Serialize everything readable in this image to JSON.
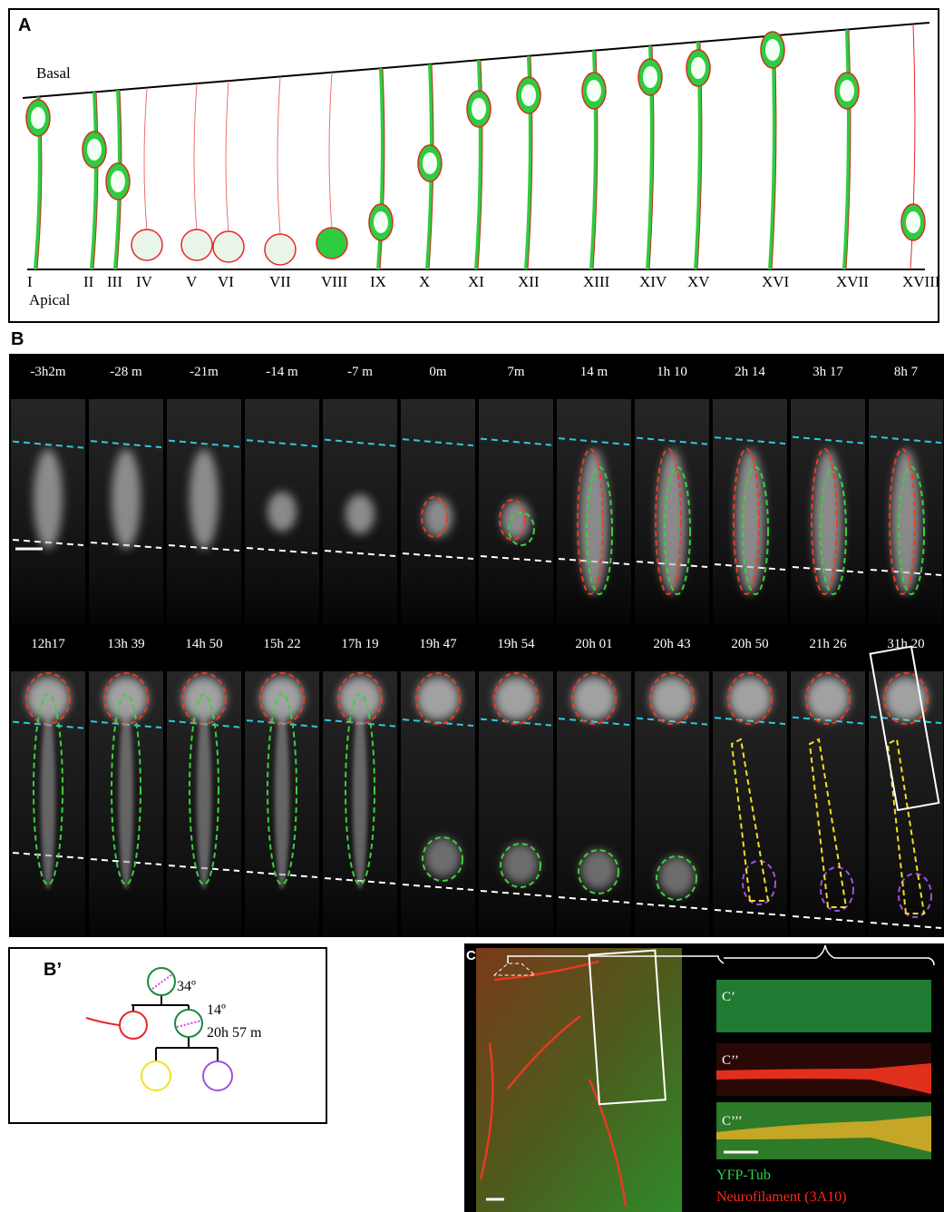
{
  "panel_a": {
    "label": "A",
    "basal": "Basal",
    "apical": "Apical",
    "stages": [
      "I",
      "II",
      "III",
      "IV",
      "V",
      "VI",
      "VII",
      "VIII",
      "IX",
      "X",
      "XI",
      "XII",
      "XIII",
      "XIV",
      "XV",
      "XVI",
      "XVII",
      "XVIII"
    ]
  },
  "panel_b": {
    "label": "B",
    "row_1": [
      "-3h2m",
      "-28 m",
      "-21m",
      "-14 m",
      "-7 m",
      "0m",
      "7m",
      "14 m",
      "1h 10",
      "2h 14",
      "3h 17",
      "8h 7"
    ],
    "row_2": [
      "12h17",
      "13h 39",
      "14h 50",
      "15h 22",
      "17h 19",
      "19h 47",
      "19h 54",
      "20h 01",
      "20h 43",
      "20h 50",
      "21h 26",
      "31h 20"
    ]
  },
  "panel_b_prime": {
    "label": "B’",
    "angle_1": "34º",
    "angle_2": "14º",
    "time": "20h 57 m"
  },
  "panel_c": {
    "label": "C",
    "insets": [
      "C’",
      "C’’",
      "C’’’"
    ],
    "legend": [
      "YFP-Tub",
      "Neurofilament (3A10)"
    ]
  }
}
